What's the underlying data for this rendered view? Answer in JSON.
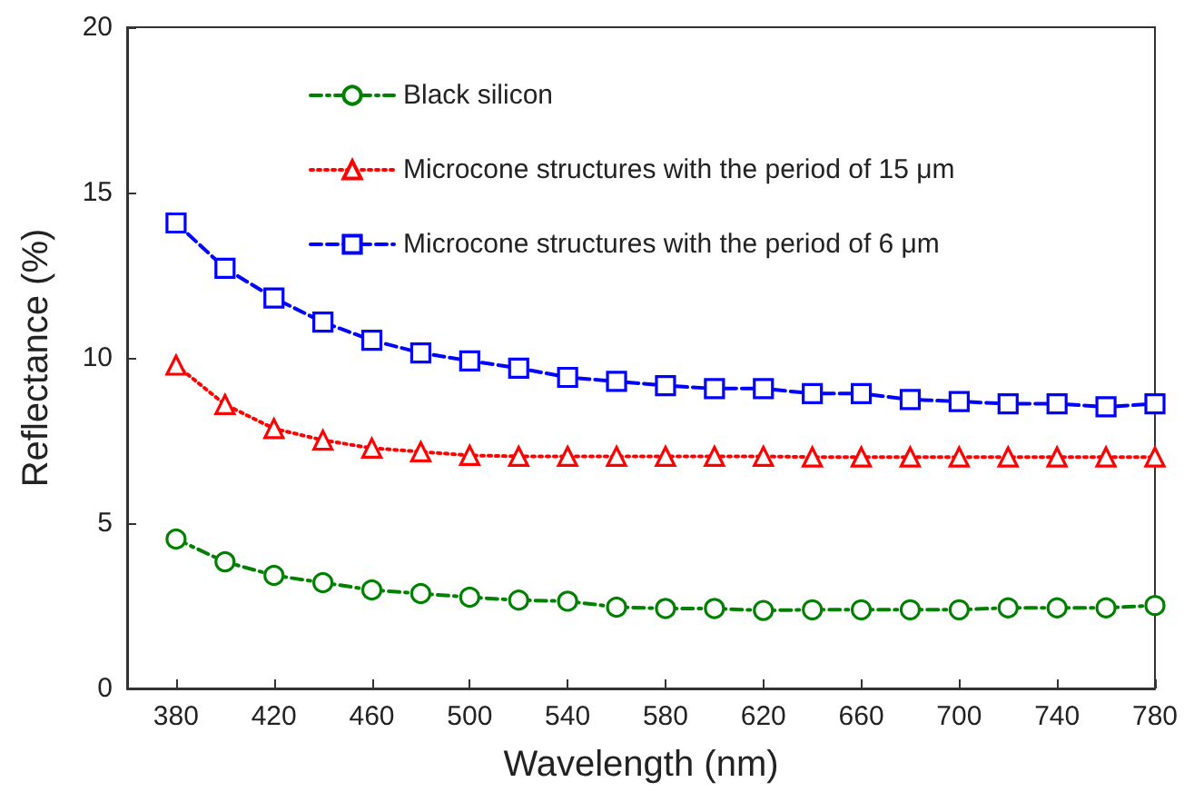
{
  "chart_data": {
    "type": "line",
    "xlabel": "Wavelength (nm)",
    "ylabel": "Reflectance (%)",
    "x": [
      380,
      400,
      420,
      440,
      460,
      480,
      500,
      520,
      540,
      560,
      580,
      600,
      620,
      640,
      660,
      680,
      700,
      720,
      740,
      760,
      780
    ],
    "series": [
      {
        "name": "Black silicon",
        "color": "#008000",
        "marker": "circle",
        "line_style": "dashdot",
        "values": [
          4.52,
          3.83,
          3.42,
          3.2,
          2.98,
          2.87,
          2.76,
          2.67,
          2.64,
          2.46,
          2.42,
          2.42,
          2.36,
          2.38,
          2.38,
          2.38,
          2.38,
          2.44,
          2.44,
          2.44,
          2.51
        ]
      },
      {
        "name": "Microcone structures with the period of 15 μm",
        "color": "#ff0000",
        "marker": "triangle",
        "line_style": "dotted",
        "values": [
          9.78,
          8.59,
          7.86,
          7.51,
          7.27,
          7.16,
          7.05,
          7.02,
          7.02,
          7.02,
          7.02,
          7.02,
          7.02,
          7.0,
          7.0,
          7.0,
          7.0,
          7.0,
          7.0,
          7.0,
          7.0
        ]
      },
      {
        "name": "Microcone structures with the period of 6 μm",
        "color": "#0000ff",
        "marker": "square",
        "line_style": "dashed",
        "values": [
          14.08,
          12.71,
          11.81,
          11.08,
          10.53,
          10.15,
          9.91,
          9.69,
          9.41,
          9.29,
          9.16,
          9.07,
          9.07,
          8.92,
          8.92,
          8.74,
          8.68,
          8.61,
          8.61,
          8.52,
          8.61
        ]
      }
    ],
    "xlim": [
      360,
      780
    ],
    "xticks": [
      380,
      420,
      460,
      500,
      540,
      580,
      620,
      660,
      700,
      740,
      780
    ],
    "ylim": [
      0,
      20
    ],
    "yticks": [
      0,
      5,
      10,
      15,
      20
    ],
    "legend": "top"
  }
}
